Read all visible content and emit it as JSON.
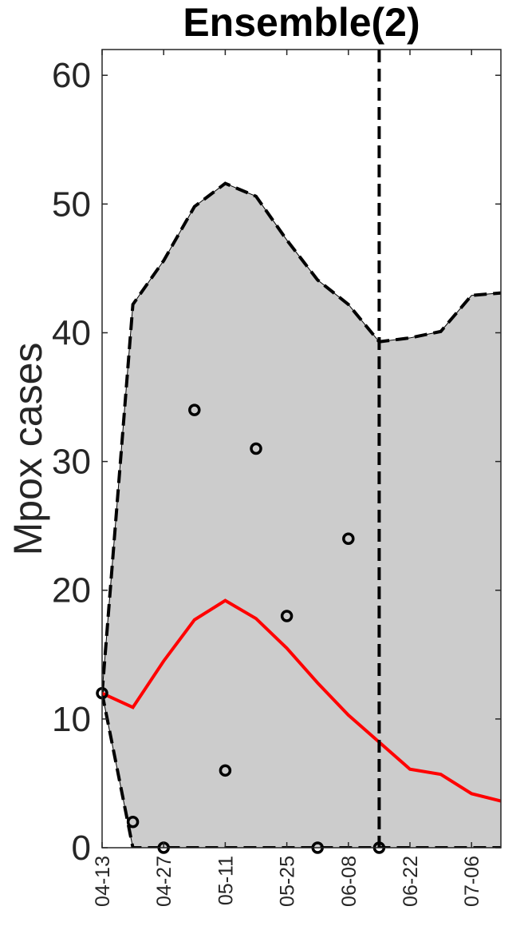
{
  "chart_data": {
    "type": "line",
    "title": "Ensemble(2)",
    "xlabel": "",
    "ylabel": "Mpox cases",
    "ylim": [
      0,
      62
    ],
    "yticks": [
      0,
      10,
      20,
      30,
      40,
      50,
      60
    ],
    "xticks": [
      "04-13",
      "04-27",
      "05-11",
      "05-25",
      "06-08",
      "06-22",
      "07-06"
    ],
    "x": [
      "04-13",
      "04-20",
      "04-27",
      "05-04",
      "05-11",
      "05-18",
      "05-25",
      "06-01",
      "06-08",
      "06-15",
      "06-22",
      "06-29",
      "07-06",
      "07-13"
    ],
    "series": [
      {
        "role": "fit",
        "color": "#ff0000",
        "values": [
          12,
          10.9,
          14.5,
          17.7,
          19.2,
          17.8,
          15.5,
          12.8,
          10.3,
          8.2,
          6.1,
          5.7,
          4.2,
          3.6
        ]
      },
      {
        "role": "upper-bound",
        "color": "#000000",
        "values": [
          12,
          42.2,
          45.6,
          49.8,
          51.6,
          50.6,
          47.2,
          44.1,
          42.2,
          39.3,
          39.6,
          40.1,
          42.9,
          43.1
        ]
      },
      {
        "role": "lower-bound",
        "color": "#000000",
        "values": [
          12,
          0,
          0,
          0,
          0,
          0,
          0,
          0,
          0,
          0,
          0,
          0,
          0,
          0
        ]
      }
    ],
    "observed": {
      "x": [
        "04-13",
        "04-20",
        "04-27",
        "05-04",
        "05-11",
        "05-18",
        "05-25",
        "06-01",
        "06-08",
        "06-15"
      ],
      "values": [
        12,
        2,
        0,
        34,
        6,
        31,
        18,
        0,
        24,
        0
      ]
    },
    "band_color": "#cccccc",
    "cutoff_x": "06-15",
    "grid": false,
    "legend": "none"
  }
}
